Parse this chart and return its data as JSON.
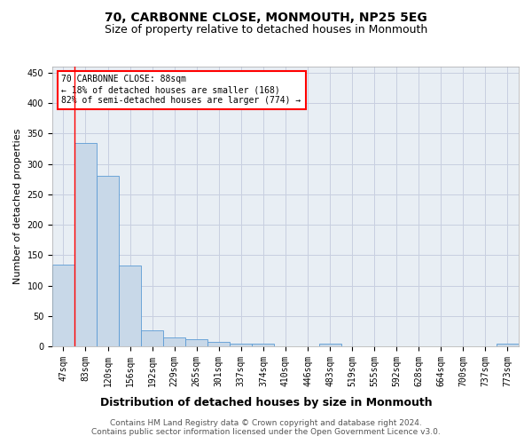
{
  "title": "70, CARBONNE CLOSE, MONMOUTH, NP25 5EG",
  "subtitle": "Size of property relative to detached houses in Monmouth",
  "xlabel": "Distribution of detached houses by size in Monmouth",
  "ylabel": "Number of detached properties",
  "categories": [
    "47sqm",
    "83sqm",
    "120sqm",
    "156sqm",
    "192sqm",
    "229sqm",
    "265sqm",
    "301sqm",
    "337sqm",
    "374sqm",
    "410sqm",
    "446sqm",
    "483sqm",
    "519sqm",
    "555sqm",
    "592sqm",
    "628sqm",
    "664sqm",
    "700sqm",
    "737sqm",
    "773sqm"
  ],
  "values": [
    135,
    335,
    280,
    133,
    26,
    15,
    11,
    7,
    5,
    4,
    0,
    0,
    4,
    0,
    0,
    0,
    0,
    0,
    0,
    0,
    4
  ],
  "bar_color": "#c8d8e8",
  "bar_edge_color": "#5b9bd5",
  "grid_color": "#c8cfe0",
  "annotation_box_text": [
    "70 CARBONNE CLOSE: 88sqm",
    "← 18% of detached houses are smaller (168)",
    "82% of semi-detached houses are larger (774) →"
  ],
  "annotation_box_color": "white",
  "annotation_box_edge_color": "red",
  "vline_color": "red",
  "vline_x_index": 1,
  "ylim": [
    0,
    460
  ],
  "yticks": [
    0,
    50,
    100,
    150,
    200,
    250,
    300,
    350,
    400,
    450
  ],
  "footer_line1": "Contains HM Land Registry data © Crown copyright and database right 2024.",
  "footer_line2": "Contains public sector information licensed under the Open Government Licence v3.0.",
  "ax_bg_color": "#e8eef4",
  "title_fontsize": 10,
  "subtitle_fontsize": 9,
  "xlabel_fontsize": 9,
  "ylabel_fontsize": 8,
  "tick_fontsize": 7,
  "annotation_fontsize": 7,
  "footer_fontsize": 6.5
}
